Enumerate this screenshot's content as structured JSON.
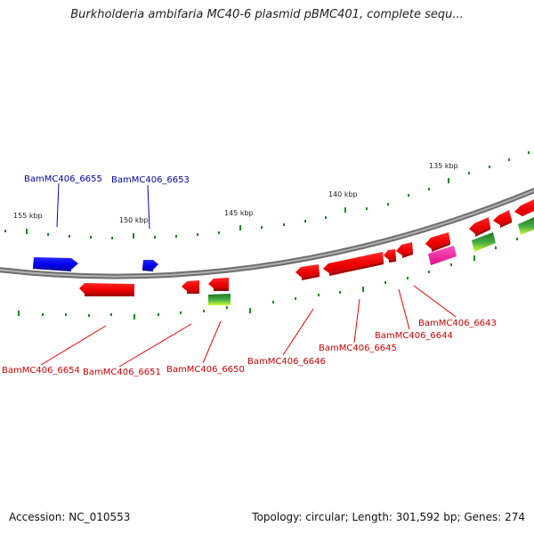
{
  "title": "Burkholderia ambifaria MC40-6 plasmid pBMC401, complete sequ...",
  "footer": {
    "accession": "Accession: NC_010553",
    "stats": "Topology: circular; Length: 301,592 bp; Genes: 274"
  },
  "colors": {
    "forward_gene": "#0000ff",
    "reverse_gene": "#ff0000",
    "forward_label": "#0000aa",
    "reverse_label": "#cc0000",
    "pink_gene": "#ff33aa",
    "green_gene": "#33aa33",
    "backbone": "#888888",
    "ticks": "#1a8a1a"
  },
  "axis": {
    "unit": "kbp",
    "labels": [
      "155 kbp",
      "150 kbp",
      "145 kbp",
      "140 kbp",
      "135 kbp"
    ]
  },
  "gene_labels": {
    "forward": [
      "BamMC406_6655",
      "BamMC406_6653"
    ],
    "reverse": [
      "BamMC406_6654",
      "BamMC406_6651",
      "BamMC406_6650",
      "BamMC406_6646",
      "BamMC406_6645",
      "BamMC406_6644",
      "BamMC406_6643"
    ]
  }
}
